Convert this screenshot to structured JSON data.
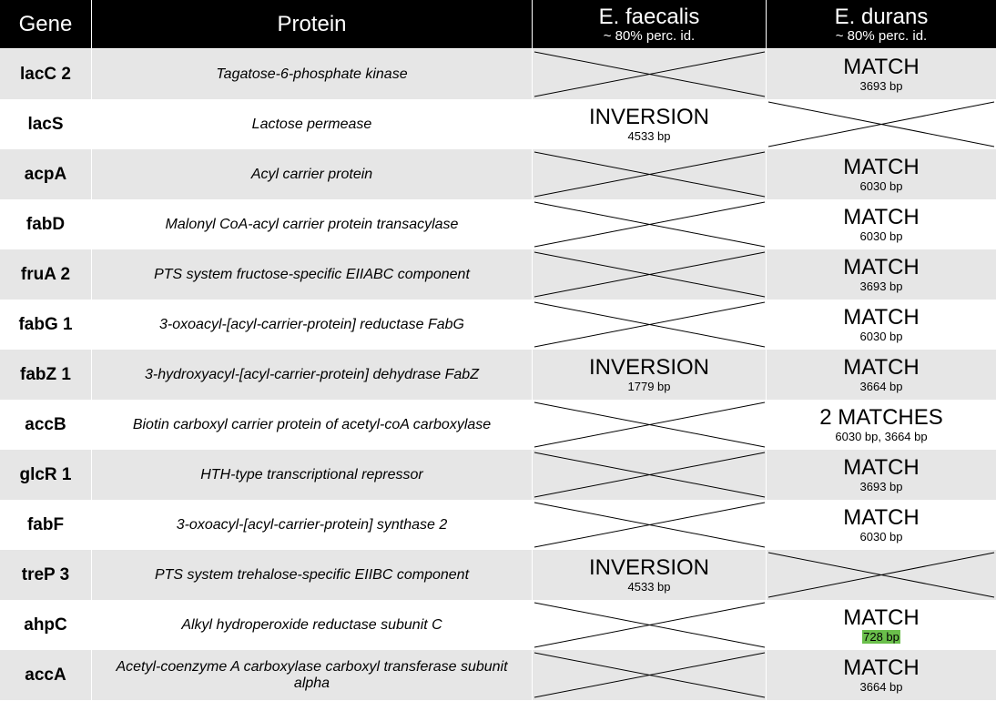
{
  "header": {
    "gene": "Gene",
    "protein": "Protein",
    "col3_title": "E. faecalis",
    "col3_sub": "~ 80% perc. id.",
    "col4_title": "E. durans",
    "col4_sub": "~ 80% perc. id."
  },
  "colors": {
    "header_bg": "#000000",
    "row_shade": "#e6e6e6",
    "highlight": "#6abf4b"
  },
  "rows": [
    {
      "gene": "lacC 2",
      "protein": "Tagatose-6-phosphate kinase",
      "faecalis": null,
      "durans": {
        "label": "MATCH",
        "bp": "3693 bp"
      }
    },
    {
      "gene": "lacS",
      "protein": "Lactose permease",
      "faecalis": {
        "label": "INVERSION",
        "bp": "4533 bp"
      },
      "durans": null
    },
    {
      "gene": "acpA",
      "protein": "Acyl carrier protein",
      "faecalis": null,
      "durans": {
        "label": "MATCH",
        "bp": "6030 bp"
      }
    },
    {
      "gene": "fabD",
      "protein": "Malonyl CoA-acyl carrier protein transacylase",
      "faecalis": null,
      "durans": {
        "label": "MATCH",
        "bp": "6030 bp"
      }
    },
    {
      "gene": "fruA 2",
      "protein": "PTS system fructose-specific EIIABC component",
      "faecalis": null,
      "durans": {
        "label": "MATCH",
        "bp": "3693 bp"
      }
    },
    {
      "gene": "fabG 1",
      "protein": "3-oxoacyl-[acyl-carrier-protein] reductase FabG",
      "faecalis": null,
      "durans": {
        "label": "MATCH",
        "bp": "6030 bp"
      }
    },
    {
      "gene": "fabZ 1",
      "protein": "3-hydroxyacyl-[acyl-carrier-protein] dehydrase FabZ",
      "faecalis": {
        "label": "INVERSION",
        "bp": "1779 bp"
      },
      "durans": {
        "label": "MATCH",
        "bp": "3664 bp"
      }
    },
    {
      "gene": "accB",
      "protein": "Biotin carboxyl carrier protein of acetyl-coA carboxylase",
      "faecalis": null,
      "durans": {
        "label": "2 MATCHES",
        "bp": "6030 bp, 3664 bp"
      }
    },
    {
      "gene": "glcR 1",
      "protein": "HTH-type transcriptional repressor",
      "faecalis": null,
      "durans": {
        "label": "MATCH",
        "bp": "3693 bp"
      }
    },
    {
      "gene": "fabF",
      "protein": "3-oxoacyl-[acyl-carrier-protein] synthase 2",
      "faecalis": null,
      "durans": {
        "label": "MATCH",
        "bp": "6030 bp"
      }
    },
    {
      "gene": "treP 3",
      "protein": "PTS system trehalose-specific EIIBC component",
      "faecalis": {
        "label": "INVERSION",
        "bp": "4533 bp"
      },
      "durans": null
    },
    {
      "gene": "ahpC",
      "protein": "Alkyl hydroperoxide reductase subunit C",
      "faecalis": null,
      "durans": {
        "label": "MATCH",
        "bp": "728 bp",
        "highlight": true
      }
    },
    {
      "gene": "accA",
      "protein": "Acetyl-coenzyme A carboxylase carboxyl transferase subunit alpha",
      "faecalis": null,
      "durans": {
        "label": "MATCH",
        "bp": "3664 bp"
      }
    }
  ]
}
